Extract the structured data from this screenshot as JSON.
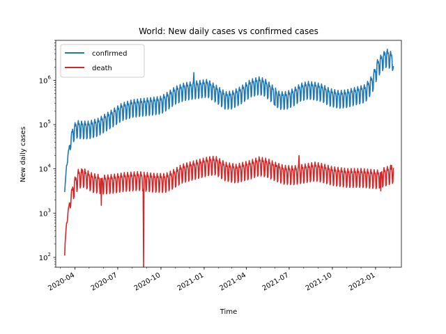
{
  "chart_data": {
    "type": "line",
    "title": "World: New daily cases vs confirmed cases",
    "xlabel": "Time",
    "ylabel": "New daily cases",
    "yscale": "log",
    "ylim": [
      60,
      8000000
    ],
    "xlim": [
      "2020-02-20",
      "2022-02-25"
    ],
    "grid": false,
    "legend_position": "top-left",
    "x_ticks": [
      "2020-04",
      "2020-07",
      "2020-10",
      "2021-01",
      "2021-04",
      "2021-07",
      "2021-10",
      "2022-01"
    ],
    "y_ticks": [
      {
        "value": 100,
        "base": "10",
        "exp": "2"
      },
      {
        "value": 1000,
        "base": "10",
        "exp": "3"
      },
      {
        "value": 10000,
        "base": "10",
        "exp": "4"
      },
      {
        "value": 100000,
        "base": "10",
        "exp": "5"
      },
      {
        "value": 1000000,
        "base": "10",
        "exp": "6"
      }
    ],
    "series": [
      {
        "name": "confirmed",
        "color": "#1f77b4",
        "weekly_amplitude": 0.33,
        "start": "2020-03-10",
        "end": "2022-02-08",
        "trend": [
          [
            "2020-03-10",
            3000
          ],
          [
            "2020-03-14",
            12000
          ],
          [
            "2020-03-20",
            30000
          ],
          [
            "2020-03-27",
            65000
          ],
          [
            "2020-04-05",
            85000
          ],
          [
            "2020-04-15",
            82000
          ],
          [
            "2020-05-01",
            82000
          ],
          [
            "2020-05-20",
            95000
          ],
          [
            "2020-06-15",
            140000
          ],
          [
            "2020-07-10",
            210000
          ],
          [
            "2020-08-01",
            250000
          ],
          [
            "2020-08-20",
            265000
          ],
          [
            "2020-09-10",
            280000
          ],
          [
            "2020-10-01",
            300000
          ],
          [
            "2020-10-15",
            370000
          ],
          [
            "2020-11-01",
            500000
          ],
          [
            "2020-11-20",
            600000
          ],
          [
            "2020-12-10",
            650000
          ],
          [
            "2021-01-08",
            720000
          ],
          [
            "2021-01-25",
            550000
          ],
          [
            "2021-02-15",
            380000
          ],
          [
            "2021-03-01",
            390000
          ],
          [
            "2021-03-20",
            500000
          ],
          [
            "2021-04-10",
            720000
          ],
          [
            "2021-04-28",
            820000
          ],
          [
            "2021-05-10",
            750000
          ],
          [
            "2021-05-25",
            550000
          ],
          [
            "2021-06-10",
            380000
          ],
          [
            "2021-06-25",
            380000
          ],
          [
            "2021-07-10",
            450000
          ],
          [
            "2021-07-25",
            580000
          ],
          [
            "2021-08-10",
            650000
          ],
          [
            "2021-08-25",
            620000
          ],
          [
            "2021-09-10",
            560000
          ],
          [
            "2021-09-25",
            450000
          ],
          [
            "2021-10-15",
            400000
          ],
          [
            "2021-11-01",
            420000
          ],
          [
            "2021-11-20",
            480000
          ],
          [
            "2021-12-10",
            550000
          ],
          [
            "2021-12-25",
            900000
          ],
          [
            "2022-01-05",
            2000000
          ],
          [
            "2022-01-15",
            2800000
          ],
          [
            "2022-01-25",
            3500000
          ],
          [
            "2022-02-08",
            2800000
          ]
        ],
        "spikes": [
          [
            "2020-12-10",
            1500000
          ],
          [
            "2021-01-08",
            900000
          ],
          [
            "2021-06-01",
            270000
          ],
          [
            "2022-01-21",
            4200000
          ],
          [
            "2022-02-08",
            2100000
          ]
        ]
      },
      {
        "name": "death",
        "color": "#d62728",
        "weekly_amplitude": 0.35,
        "start": "2020-03-10",
        "end": "2022-02-08",
        "trend": [
          [
            "2020-03-10",
            150
          ],
          [
            "2020-03-14",
            600
          ],
          [
            "2020-03-20",
            1500
          ],
          [
            "2020-03-28",
            3500
          ],
          [
            "2020-04-08",
            6500
          ],
          [
            "2020-04-20",
            6800
          ],
          [
            "2020-05-10",
            5200
          ],
          [
            "2020-06-01",
            4800
          ],
          [
            "2020-06-20",
            5000
          ],
          [
            "2020-07-15",
            5500
          ],
          [
            "2020-08-15",
            5800
          ],
          [
            "2020-09-15",
            5300
          ],
          [
            "2020-10-10",
            5200
          ],
          [
            "2020-10-25",
            6200
          ],
          [
            "2020-11-15",
            8500
          ],
          [
            "2020-12-15",
            10500
          ],
          [
            "2021-01-10",
            12500
          ],
          [
            "2021-01-25",
            13000
          ],
          [
            "2021-02-15",
            9500
          ],
          [
            "2021-03-10",
            8500
          ],
          [
            "2021-04-10",
            10500
          ],
          [
            "2021-04-28",
            12500
          ],
          [
            "2021-05-15",
            11500
          ],
          [
            "2021-06-01",
            9500
          ],
          [
            "2021-06-20",
            8000
          ],
          [
            "2021-07-10",
            7800
          ],
          [
            "2021-08-01",
            8500
          ],
          [
            "2021-08-25",
            9500
          ],
          [
            "2021-09-10",
            8800
          ],
          [
            "2021-10-01",
            7500
          ],
          [
            "2021-11-01",
            6800
          ],
          [
            "2021-12-01",
            6800
          ],
          [
            "2022-01-05",
            6300
          ],
          [
            "2022-01-25",
            7500
          ],
          [
            "2022-02-08",
            8500
          ]
        ],
        "spikes": [
          [
            "2020-03-10",
            110
          ],
          [
            "2020-04-17",
            9500
          ],
          [
            "2020-05-27",
            1500
          ],
          [
            "2020-08-25",
            60
          ],
          [
            "2021-06-05",
            12000
          ],
          [
            "2021-07-22",
            20000
          ],
          [
            "2022-01-12",
            3200
          ],
          [
            "2022-02-04",
            12000
          ]
        ]
      }
    ]
  }
}
